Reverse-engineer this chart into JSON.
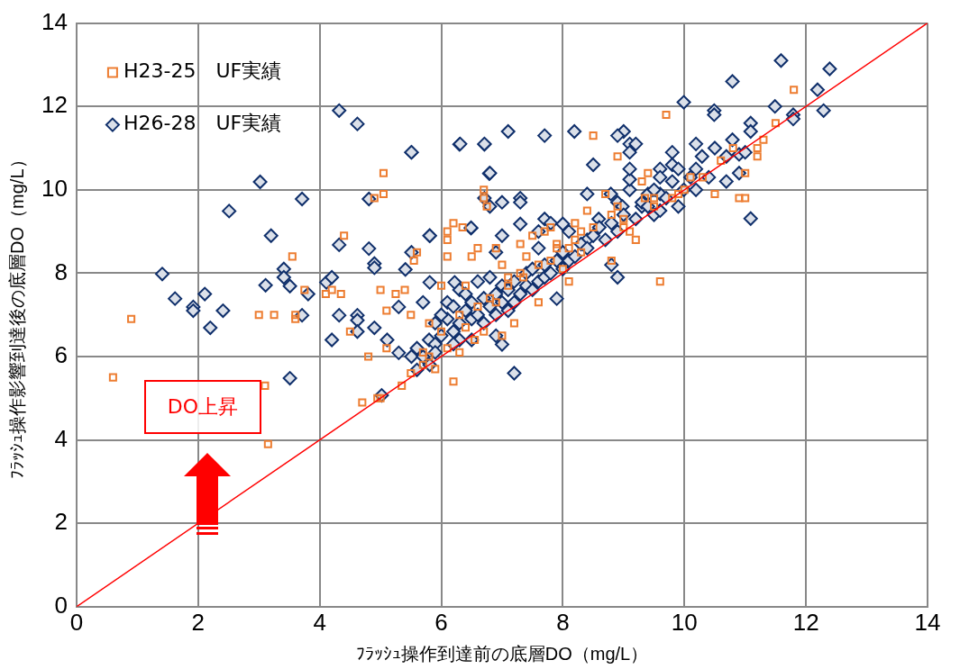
{
  "chart_data": {
    "type": "scatter",
    "xlabel": "ﾌﾗｯｼｭ操作到達前の底層DO（mg/L）",
    "ylabel": "ﾌﾗｯｼｭ操作影響到達後の底層DO（mg/L）",
    "annotations": [
      "DO上昇"
    ],
    "xlim": [
      0,
      14
    ],
    "xticks": [
      0,
      2,
      4,
      6,
      8,
      10,
      12,
      14
    ],
    "ylim": [
      0,
      14
    ],
    "yticks": [
      0,
      2,
      4,
      6,
      8,
      10,
      12,
      14
    ],
    "grid": true,
    "legend": "top left",
    "series": [
      {
        "name": "H23-25　UF実績",
        "color": "#ed7d31",
        "marker": "square",
        "x": [
          0.6,
          0.9,
          3.0,
          3.1,
          3.15,
          3.25,
          3.55,
          3.6,
          3.6,
          3.75,
          4.1,
          4.2,
          4.35,
          4.4,
          4.5,
          4.7,
          4.8,
          4.9,
          4.95,
          5.0,
          5.0,
          5.05,
          5.05,
          5.1,
          5.1,
          5.25,
          5.35,
          5.4,
          5.5,
          5.5,
          5.55,
          5.6,
          5.7,
          5.7,
          5.8,
          5.9,
          6.0,
          6.1,
          6.1,
          6.1,
          6.1,
          6.2,
          6.2,
          6.3,
          6.35,
          6.4,
          6.5,
          6.55,
          6.6,
          6.7,
          6.7,
          6.75,
          6.8,
          6.9,
          7.0,
          7.0,
          7.1,
          7.2,
          7.3,
          7.35,
          7.5,
          7.6,
          7.7,
          7.8,
          7.9,
          8.0,
          8.1,
          8.2,
          8.3,
          8.4,
          8.5,
          8.7,
          8.8,
          8.9,
          8.9,
          9.0,
          9.1,
          9.2,
          9.3,
          9.35,
          9.4,
          9.5,
          9.6,
          9.7,
          9.8,
          9.9,
          10.0,
          10.1,
          10.3,
          10.5,
          10.6,
          10.8,
          10.9,
          11.0,
          11.0,
          11.2,
          11.3,
          11.5,
          11.8,
          11.2,
          6.4,
          6.6,
          6.9,
          7.1,
          7.3,
          7.6,
          7.9,
          8.2,
          8.5,
          8.8,
          6.0,
          5.8,
          6.3,
          6.7,
          7.4,
          7.8,
          8.1,
          8.3,
          9.0,
          9.5
        ],
        "values": [
          5.5,
          6.9,
          7.0,
          5.3,
          3.9,
          7.0,
          8.4,
          7.0,
          6.9,
          7.6,
          7.5,
          7.6,
          7.5,
          8.9,
          6.6,
          4.9,
          6.0,
          9.8,
          5.0,
          5.0,
          7.6,
          9.9,
          10.4,
          6.2,
          7.1,
          7.5,
          5.3,
          7.6,
          5.6,
          7.0,
          8.3,
          8.5,
          5.8,
          6.1,
          6.0,
          5.7,
          7.7,
          8.8,
          8.4,
          9.0,
          6.2,
          5.4,
          9.2,
          7.0,
          9.1,
          7.7,
          8.4,
          6.4,
          8.6,
          9.8,
          10.0,
          9.6,
          7.4,
          8.6,
          6.5,
          8.2,
          7.7,
          6.8,
          8.7,
          7.9,
          8.9,
          7.3,
          9.0,
          8.3,
          8.6,
          8.1,
          7.8,
          9.2,
          8.5,
          9.5,
          11.3,
          9.9,
          8.3,
          10.8,
          9.6,
          9.1,
          9.0,
          8.8,
          10.2,
          9.8,
          10.4,
          9.6,
          7.8,
          11.8,
          9.8,
          9.9,
          10.0,
          10.3,
          10.3,
          9.9,
          10.7,
          11.0,
          9.8,
          9.8,
          10.4,
          11.0,
          11.2,
          11.6,
          12.4,
          10.8,
          6.7,
          7.2,
          7.3,
          7.9,
          8.0,
          8.2,
          8.7,
          8.8,
          9.1,
          9.4,
          6.6,
          6.8,
          6.1,
          6.6,
          8.4,
          9.1,
          8.6,
          9.0,
          9.3,
          9.8
        ]
      },
      {
        "name": "H26-28　UF実績",
        "color": "#0f2f6b",
        "marker": "diamond",
        "x": [
          1.41,
          1.62,
          1.92,
          1.92,
          2.11,
          2.2,
          2.41,
          2.51,
          3.02,
          3.2,
          3.11,
          3.41,
          3.41,
          3.51,
          3.71,
          3.81,
          3.71,
          3.51,
          4.11,
          4.2,
          4.32,
          4.62,
          4.32,
          4.32,
          4.2,
          4.62,
          4.62,
          4.62,
          4.81,
          4.81,
          4.9,
          4.9,
          4.9,
          5.11,
          5.3,
          5.3,
          5.51,
          5.51,
          5.41,
          5.51,
          5.6,
          5.81,
          5.81,
          6.3,
          6.71,
          6.79,
          6.49,
          5.02,
          5.7,
          5.81,
          6.22,
          11.59,
          12.39,
          10.79,
          12.19,
          12.29,
          9.99,
          10.49,
          10.49,
          11.49,
          11.09,
          11.09,
          11.79,
          11.79,
          11.09,
          10.19,
          9.8,
          10.5,
          10.29,
          10.69,
          10.9,
          11.0,
          10.79,
          10.19,
          10.4,
          10.69,
          10.9,
          10.1,
          9.99,
          10.19,
          9.9,
          9.6,
          9.6,
          9.8,
          9.9,
          9.4,
          9.6,
          9.5,
          9.6,
          9.1,
          9.1,
          9.1,
          9.0,
          8.9,
          9.1,
          9.2,
          9.1,
          8.5,
          8.4,
          8.79,
          8.9,
          8.98,
          9.3,
          8.19,
          7.7,
          7.1,
          6.71,
          6.31,
          5.51,
          6.8,
          6.71,
          6.8,
          7.0,
          7.3,
          7.3,
          6.49,
          5.81,
          7.0,
          6.9,
          7.3,
          7.6,
          7.7,
          7.8,
          8.0,
          8.1,
          7.6,
          8.59,
          8.4,
          8.8,
          8.9,
          7.2,
          7.9,
          7.0,
          6.9,
          6.0,
          6.1,
          6.2,
          6.3,
          6.4,
          6.5,
          6.5,
          6.6,
          6.7,
          6.7,
          6.8,
          6.9,
          6.9,
          7.0,
          7.0,
          7.1,
          7.1,
          7.2,
          7.2,
          7.3,
          7.4,
          7.4,
          7.5,
          7.5,
          7.6,
          7.7,
          7.7,
          7.8,
          7.9,
          8.0,
          8.0,
          8.1,
          8.2,
          8.3,
          8.4,
          8.5,
          8.6,
          8.7,
          8.8,
          8.9,
          9.0,
          9.2,
          9.3,
          9.4,
          9.5,
          9.7,
          9.8,
          5.6,
          5.7,
          5.8,
          5.9,
          5.9,
          6.0,
          6.1,
          6.2,
          6.3,
          6.4,
          6.6,
          6.8,
          6.5,
          6.3,
          6.2,
          5.9
        ],
        "values": [
          7.98,
          7.39,
          7.19,
          7.1,
          7.5,
          6.69,
          7.1,
          9.49,
          10.19,
          8.9,
          7.71,
          8.1,
          7.9,
          7.69,
          9.78,
          7.5,
          6.99,
          5.48,
          7.78,
          7.9,
          11.9,
          11.58,
          8.68,
          6.99,
          6.4,
          6.99,
          6.87,
          6.6,
          9.78,
          8.59,
          8.23,
          8.13,
          6.69,
          6.4,
          6.09,
          7.19,
          10.9,
          8.5,
          8.09,
          6.0,
          5.68,
          8.9,
          5.8,
          11.09,
          11.09,
          10.39,
          9.08,
          5.07,
          7.3,
          7.78,
          7.78,
          13.1,
          12.9,
          12.6,
          12.4,
          11.9,
          12.1,
          11.9,
          11.8,
          12.0,
          11.6,
          11.4,
          11.8,
          11.7,
          9.31,
          11.1,
          10.9,
          11.0,
          10.8,
          10.8,
          10.85,
          10.9,
          11.2,
          10.5,
          10.3,
          10.2,
          10.4,
          10.3,
          10.0,
          10.0,
          9.6,
          10.5,
          10.3,
          10.6,
          10.5,
          9.9,
          9.9,
          9.4,
          9.5,
          10.0,
          10.25,
          10.5,
          11.4,
          11.3,
          11.1,
          11.1,
          10.9,
          10.6,
          9.9,
          9.9,
          9.7,
          9.6,
          9.6,
          11.4,
          11.3,
          11.4,
          11.1,
          11.1,
          10.9,
          10.4,
          9.8,
          9.6,
          9.7,
          9.8,
          9.7,
          9.09,
          8.9,
          8.9,
          8.5,
          9.18,
          9.0,
          9.3,
          9.2,
          9.18,
          9.0,
          8.6,
          9.3,
          8.8,
          8.2,
          7.9,
          5.6,
          7.39,
          6.29,
          6.5,
          6.5,
          6.9,
          6.6,
          6.8,
          7.1,
          6.9,
          7.3,
          7.0,
          7.4,
          6.8,
          7.2,
          7.5,
          7.0,
          7.3,
          7.7,
          7.1,
          7.6,
          7.8,
          7.3,
          7.5,
          7.7,
          8.0,
          7.6,
          8.1,
          7.8,
          8.2,
          7.9,
          8.0,
          8.3,
          8.1,
          8.5,
          8.3,
          8.4,
          8.7,
          8.6,
          8.9,
          9.1,
          8.8,
          9.2,
          9.0,
          9.4,
          9.3,
          9.7,
          9.6,
          10.0,
          9.8,
          10.2,
          6.2,
          6.0,
          6.4,
          6.3,
          6.8,
          7.0,
          7.3,
          7.2,
          7.6,
          7.5,
          7.8,
          7.9,
          6.4,
          6.4,
          6.3,
          6.1
        ]
      },
      {
        "type": "line",
        "color": "#ff0000",
        "x": [
          0,
          14
        ],
        "values": [
          0,
          14
        ]
      }
    ]
  }
}
